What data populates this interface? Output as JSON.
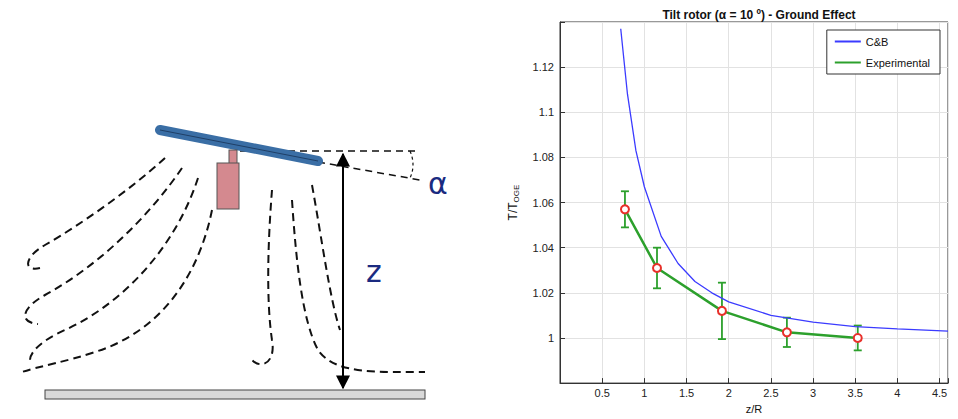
{
  "chart_data": {
    "type": "line",
    "title": "Tilt rotor (α = 10 º) - Ground Effect",
    "xlabel": "z/R",
    "ylabel": "T/T",
    "ylabel_subscript": "OGE",
    "xlim": [
      0,
      4.6
    ],
    "xticks": [
      0.5,
      1,
      1.5,
      2,
      2.5,
      3,
      3.5,
      4,
      4.5
    ],
    "ylim": [
      0.98,
      1.14
    ],
    "yticks": [
      1,
      1.02,
      1.04,
      1.06,
      1.08,
      1.1,
      1.12
    ],
    "grid": true,
    "legend": "upper right",
    "series": [
      {
        "name": "C&B",
        "color": "#3b3bff",
        "marker": "none",
        "line_style": "solid",
        "x": [
          0.72,
          0.8,
          0.9,
          1.0,
          1.2,
          1.4,
          1.6,
          1.8,
          2.0,
          2.5,
          3.0,
          3.5,
          4.0,
          4.6
        ],
        "values": [
          1.137,
          1.108,
          1.083,
          1.067,
          1.045,
          1.033,
          1.025,
          1.02,
          1.016,
          1.01,
          1.007,
          1.005,
          1.004,
          1.003
        ]
      },
      {
        "name": "Experimental",
        "color": "#2ca02c",
        "marker": "circle",
        "line_style": "solid",
        "x": [
          0.77,
          1.15,
          1.92,
          2.69,
          3.53
        ],
        "values": [
          1.057,
          1.031,
          1.012,
          1.0025,
          1.0
        ],
        "error": [
          0.008,
          0.009,
          0.0125,
          0.0065,
          0.0055
        ]
      }
    ]
  },
  "diagram": {
    "angle_label": "α",
    "height_label": "z"
  }
}
